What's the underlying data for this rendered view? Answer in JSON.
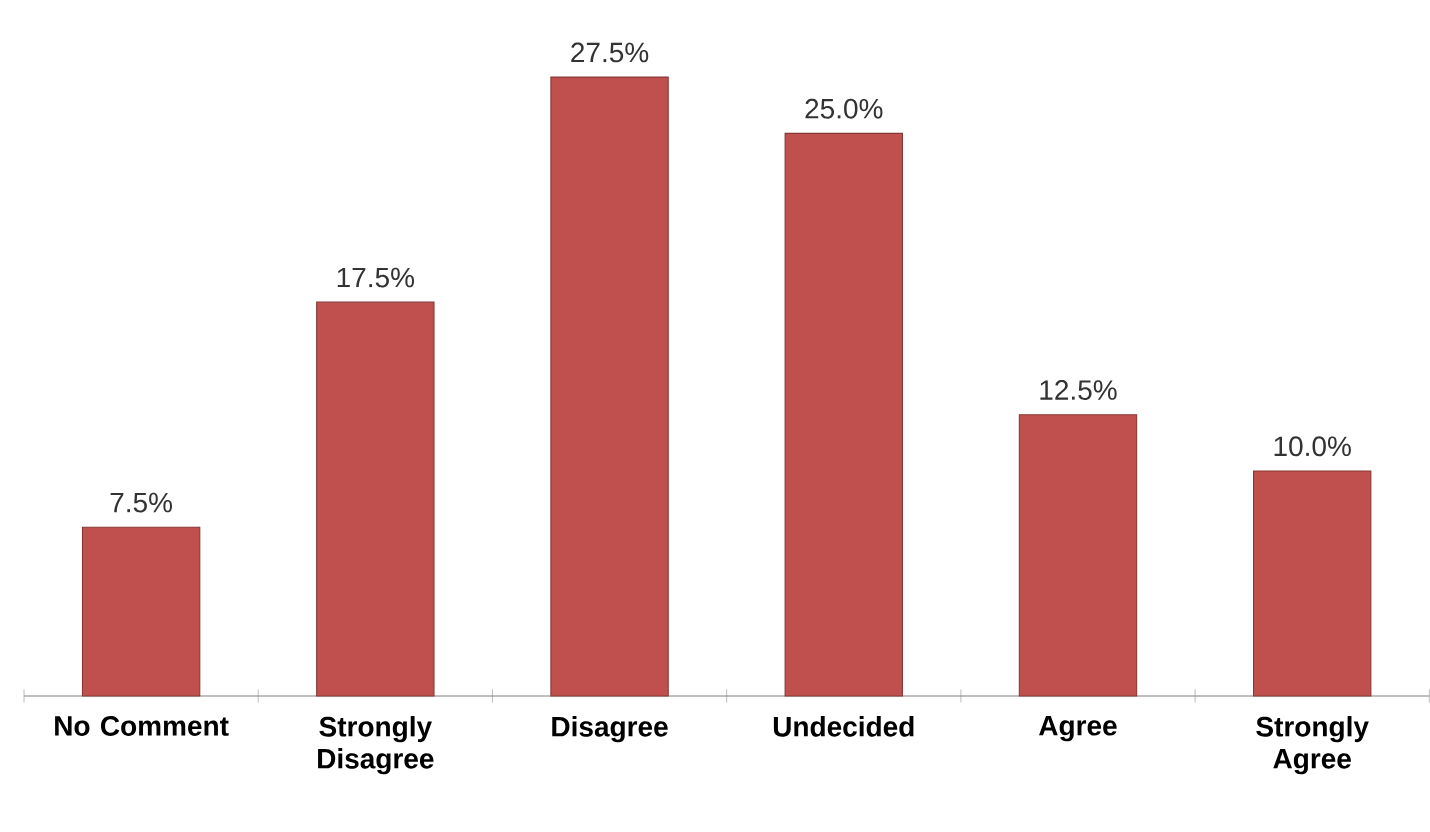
{
  "chart_data": {
    "type": "bar",
    "categories": [
      "No Comment",
      "Strongly Disagree",
      "Disagree",
      "Undecided",
      "Agree",
      "Strongly Agree"
    ],
    "values": [
      7.5,
      17.5,
      27.5,
      25.0,
      12.5,
      10.0
    ],
    "value_labels": [
      "7.5%",
      "17.5%",
      "27.5%",
      "25.0%",
      "12.5%",
      "10.0%"
    ],
    "color": "#c0504d"
  }
}
